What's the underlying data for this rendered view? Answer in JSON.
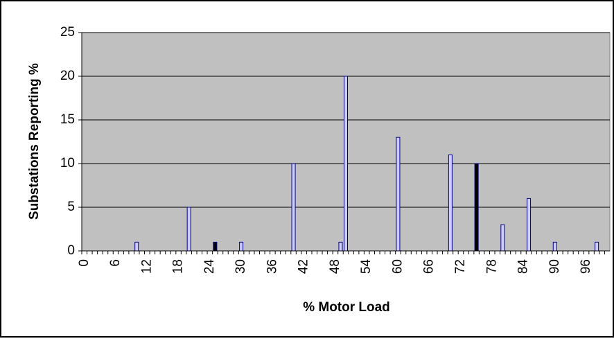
{
  "chart_data": {
    "type": "bar",
    "x_label": "% Motor Load",
    "y_label": "Substations Reporting %",
    "x": [
      10,
      20,
      25,
      30,
      40,
      49,
      50,
      60,
      70,
      75,
      80,
      85,
      90,
      98
    ],
    "values": [
      1,
      5,
      1,
      1,
      10,
      1,
      20,
      13,
      11,
      10,
      3,
      6,
      1,
      1
    ],
    "colors": [
      "#ccccff",
      "#ccccff",
      "#000000",
      "#ccccff",
      "#ccccff",
      "#ccccff",
      "#ccccff",
      "#ccccff",
      "#ccccff",
      "#000000",
      "#ccccff",
      "#ccccff",
      "#ccccff",
      "#ccccff"
    ],
    "xlim": [
      -0.5,
      100.5
    ],
    "xticks": [
      0,
      6,
      12,
      18,
      24,
      30,
      36,
      42,
      48,
      54,
      60,
      66,
      72,
      78,
      84,
      90,
      96
    ],
    "ylim": [
      0,
      25
    ],
    "yticks": [
      0,
      5,
      10,
      15,
      20,
      25
    ],
    "grid": true
  }
}
